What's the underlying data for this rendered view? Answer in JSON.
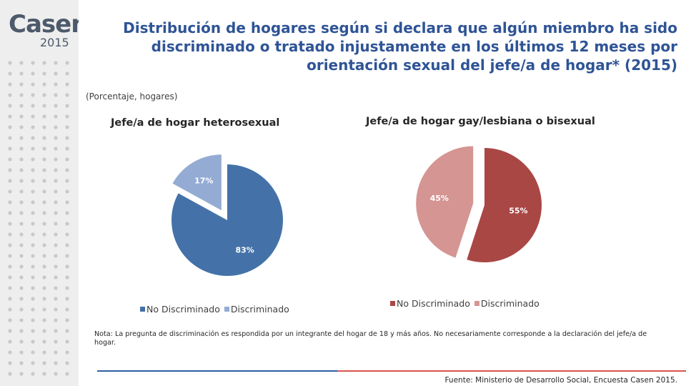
{
  "logo": {
    "word": "Casen",
    "year": "2015"
  },
  "title": "Distribución de hogares según si declara que algún miembro ha sido discriminado o tratado injustamente en los últimos 12 meses por orientación sexual del jefe/a de hogar* (2015)",
  "subtitle": "(Porcentaje, hogares)",
  "note": "Nota: La pregunta de discriminación es respondida por un integrante del hogar de 18 y más años. No necesariamente corresponde a la declaración del jefe/a de hogar.",
  "source": "Fuente: Ministerio de Desarrollo Social, Encuesta Casen 2015.",
  "colors": {
    "accent_title": "#2f5496",
    "rule_blue": "#2e5fa6",
    "rule_red": "#d9544d"
  },
  "chart_data": [
    {
      "type": "pie",
      "title": "Jefe/a de hogar heterosexual",
      "categories": [
        "No Discriminado",
        "Discriminado"
      ],
      "values": [
        83,
        17
      ],
      "labels": [
        "83%",
        "17%"
      ],
      "colors": [
        "#4472a8",
        "#94acd3"
      ],
      "exploded": "Discriminado",
      "legend_position": "bottom"
    },
    {
      "type": "pie",
      "title": "Jefe/a de hogar gay/lesbiana o bisexual",
      "categories": [
        "No Discriminado",
        "Discriminado"
      ],
      "values": [
        55,
        45
      ],
      "labels": [
        "55%",
        "45%"
      ],
      "colors": [
        "#a94745",
        "#d49593"
      ],
      "exploded": "Discriminado",
      "legend_position": "bottom"
    }
  ]
}
